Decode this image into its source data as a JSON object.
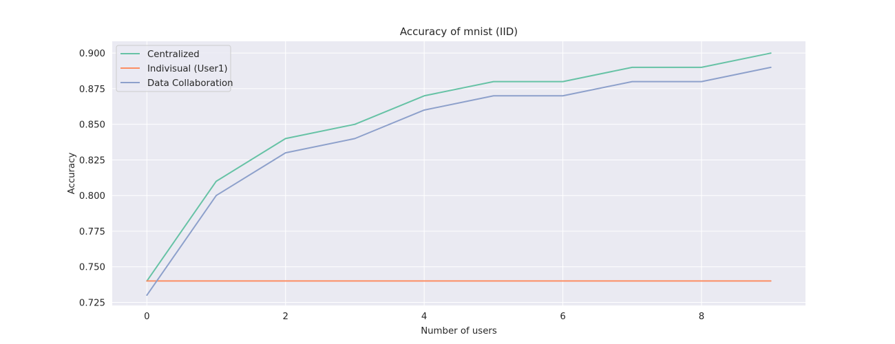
{
  "chart_data": {
    "type": "line",
    "title": "Accuracy of mnist (IID)",
    "xlabel": "Number of users",
    "ylabel": "Accuracy",
    "x": [
      0,
      1,
      2,
      3,
      4,
      5,
      6,
      7,
      8,
      9
    ],
    "xlim": [
      -0.5,
      9.5
    ],
    "ylim": [
      0.7228,
      0.9083
    ],
    "xticks": [
      0,
      2,
      4,
      6,
      8
    ],
    "xtick_labels": [
      "0",
      "2",
      "4",
      "6",
      "8"
    ],
    "yticks": [
      0.725,
      0.75,
      0.775,
      0.8,
      0.825,
      0.85,
      0.875,
      0.9
    ],
    "ytick_labels": [
      "0.725",
      "0.750",
      "0.775",
      "0.800",
      "0.825",
      "0.850",
      "0.875",
      "0.900"
    ],
    "grid": true,
    "legend_position": "top-left",
    "series": [
      {
        "name": "Centralized",
        "color": "#66c2a5",
        "values": [
          0.74,
          0.81,
          0.84,
          0.85,
          0.87,
          0.88,
          0.88,
          0.89,
          0.89,
          0.9
        ]
      },
      {
        "name": "Indivisual (User1)",
        "color": "#fc8d62",
        "values": [
          0.74,
          0.74,
          0.74,
          0.74,
          0.74,
          0.74,
          0.74,
          0.74,
          0.74,
          0.74
        ]
      },
      {
        "name": "Data Collaboration",
        "color": "#8da0cb",
        "values": [
          0.73,
          0.8,
          0.83,
          0.84,
          0.86,
          0.87,
          0.87,
          0.88,
          0.88,
          0.89
        ]
      }
    ],
    "background_color": "#eaeaf2",
    "grid_color": "#ffffff"
  }
}
